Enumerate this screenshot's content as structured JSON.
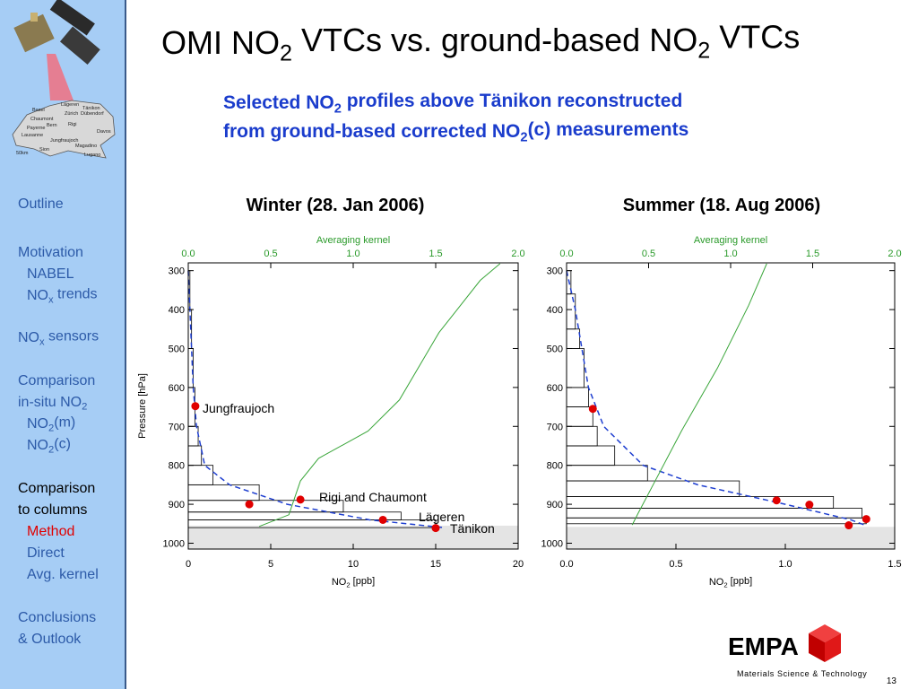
{
  "title": [
    "OMI NO",
    "2",
    " VTCs vs. ground-based NO",
    "2",
    " VTCs"
  ],
  "subtitle": [
    [
      "Selected NO",
      "2",
      " profiles above Tänikon reconstructed"
    ],
    [
      "from ground-based corrected NO",
      "2",
      "(c) measurements"
    ]
  ],
  "sidebar": {
    "items": [
      [
        "Outline"
      ],
      [
        "Motivation"
      ],
      [
        "NABEL"
      ],
      [
        "NO",
        "x",
        " trends"
      ],
      [
        "NO",
        "x",
        " sensors"
      ],
      [
        "Comparison"
      ],
      [
        "in-situ NO",
        "2"
      ],
      [
        "NO",
        "2",
        "(m)"
      ],
      [
        "NO",
        "2",
        "(c)"
      ],
      [
        "Comparison"
      ],
      [
        "to columns"
      ],
      [
        "Method"
      ],
      [
        "Direct"
      ],
      [
        "Avg. kernel"
      ],
      [
        "Conclusions"
      ],
      [
        "& Outlook"
      ]
    ],
    "map_labels": [
      "Lägeren",
      "Tänikon",
      "Basel",
      "Zürich",
      "Dübendorf",
      "Chaumont",
      "Payerne",
      "Bern",
      "Rigi",
      "Davos",
      "Lausanne",
      "Jungfraujoch",
      "Sion",
      "Magadino",
      "Lugano",
      "50km"
    ]
  },
  "chart_data": [
    {
      "type": "profile",
      "title": "Winter (28. Jan 2006)",
      "xlabel": [
        "NO",
        "2",
        " [ppb]"
      ],
      "x2label": "Averaging kernel",
      "ylabel": "Pressure [hPa]",
      "xlim": [
        0,
        20
      ],
      "xticks": [
        0,
        5,
        10,
        15,
        20
      ],
      "x2lim": [
        0,
        2
      ],
      "x2ticks": [
        {
          "value": 0,
          "label": "0.0"
        },
        0.5,
        {
          "value": 1,
          "label": "1.0"
        },
        1.5,
        {
          "value": 2,
          "label": "2.0"
        }
      ],
      "ylim": [
        280,
        1015
      ],
      "yticks": [
        300,
        400,
        500,
        600,
        700,
        800,
        900,
        1000
      ],
      "y_inverted": true,
      "surface_pressure": 955,
      "profile": {
        "edges": [
          300,
          400,
          500,
          600,
          700,
          750,
          800,
          850,
          890,
          920,
          940,
          960
        ],
        "values": [
          0.1,
          0.2,
          0.3,
          0.4,
          0.6,
          0.8,
          1.5,
          4.3,
          9.4,
          12.9,
          15.0
        ]
      },
      "curves": [
        {
          "color": "#1f3fd0",
          "dashed": true,
          "axis": "x",
          "x": [
            0,
            0.1,
            0.2,
            0.3,
            0.5,
            1.0,
            2.5,
            6.0,
            11,
            15.5
          ],
          "y": [
            300,
            400,
            500,
            600,
            700,
            800,
            850,
            900,
            940,
            960
          ]
        },
        {
          "color": "#3aa63a",
          "dashed": false,
          "axis": "x2",
          "x": [
            0.43,
            0.61,
            0.68,
            0.79,
            1.09,
            1.28,
            1.52,
            1.77,
            1.89
          ],
          "y": [
            957,
            927,
            840,
            782,
            712,
            632,
            459,
            325,
            282
          ]
        }
      ],
      "points": {
        "color": "#e00000",
        "x": [
          0.43,
          3.7,
          6.8,
          11.8,
          15.0
        ],
        "y": [
          648,
          900,
          888,
          940,
          961
        ]
      },
      "annotations": [
        "Jungfraujoch",
        "Rigi and Chaumont",
        "Lägeren",
        "Tänikon"
      ]
    },
    {
      "type": "profile",
      "title": "Summer (18. Aug 2006)",
      "xlabel": [
        "NO",
        "2",
        " [ppb]"
      ],
      "x2label": "Averaging kernel",
      "xlim": [
        0,
        1.5
      ],
      "xticks": [
        {
          "value": 0,
          "label": "0.0"
        },
        0.5,
        {
          "value": 1,
          "label": "1.0"
        },
        1.5
      ],
      "x2lim": [
        0,
        2
      ],
      "x2ticks": [
        {
          "value": 0,
          "label": "0.0"
        },
        0.5,
        {
          "value": 1,
          "label": "1.0"
        },
        1.5,
        {
          "value": 2,
          "label": "2.0"
        }
      ],
      "ylim": [
        280,
        1015
      ],
      "yticks": [
        300,
        400,
        500,
        600,
        700,
        800,
        900,
        1000
      ],
      "y_inverted": true,
      "surface_pressure": 958,
      "profile": {
        "edges": [
          300,
          360,
          450,
          500,
          600,
          650,
          700,
          750,
          800,
          840,
          880,
          910,
          935,
          950
        ],
        "values": [
          0.02,
          0.04,
          0.06,
          0.08,
          0.1,
          0.12,
          0.14,
          0.22,
          0.37,
          0.79,
          1.22,
          1.35,
          1.37
        ]
      },
      "curves": [
        {
          "color": "#1f3fd0",
          "dashed": true,
          "axis": "x",
          "x": [
            0,
            0.04,
            0.07,
            0.1,
            0.17,
            0.35,
            0.6,
            1.0,
            1.3,
            1.37
          ],
          "y": [
            300,
            400,
            500,
            600,
            700,
            800,
            850,
            900,
            940,
            955
          ]
        },
        {
          "color": "#3aa63a",
          "dashed": false,
          "axis": "x2",
          "x": [
            0.4,
            0.44,
            0.54,
            0.7,
            0.92,
            1.11,
            1.22
          ],
          "y": [
            953,
            920,
            840,
            712,
            550,
            389,
            282
          ]
        }
      ],
      "points": {
        "color": "#e00000",
        "x": [
          0.12,
          0.96,
          1.11,
          1.37,
          1.29
        ],
        "y": [
          655,
          890,
          901,
          938,
          954
        ]
      }
    }
  ],
  "footer": {
    "logo": "EMPA",
    "tagline": "Materials Science & Technology",
    "page": 13
  }
}
